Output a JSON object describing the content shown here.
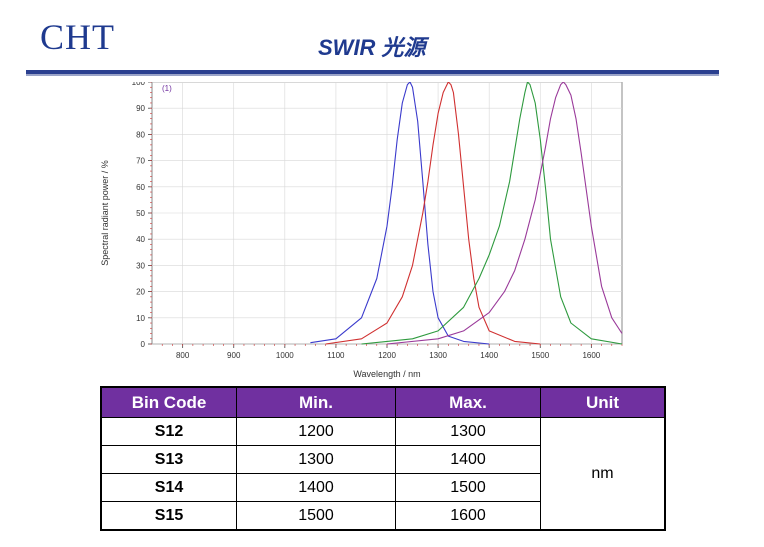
{
  "header": {
    "logo": "CHT",
    "title": "SWIR 光源"
  },
  "chart_data": {
    "type": "line",
    "ylabel": "Spectral radiant power / %",
    "xlabel": "Wavelength / nm",
    "corner_label": "(1)",
    "xlim": [
      740,
      1660
    ],
    "ylim": [
      0,
      100
    ],
    "x_ticks": [
      800,
      900,
      1000,
      1100,
      1200,
      1300,
      1400,
      1500,
      1600
    ],
    "y_ticks": [
      0,
      10,
      20,
      30,
      40,
      50,
      60,
      70,
      80,
      90,
      100
    ],
    "grid": true,
    "series": [
      {
        "color": "#3a3acc",
        "x": [
          1050,
          1100,
          1150,
          1180,
          1200,
          1210,
          1220,
          1230,
          1240,
          1245,
          1250,
          1260,
          1270,
          1280,
          1290,
          1300,
          1320,
          1350,
          1400
        ],
        "y": [
          0.5,
          2,
          10,
          25,
          45,
          60,
          78,
          92,
          99,
          100,
          98,
          85,
          62,
          38,
          20,
          10,
          3,
          1,
          0
        ]
      },
      {
        "color": "#d03030",
        "x": [
          1080,
          1150,
          1200,
          1230,
          1250,
          1270,
          1280,
          1290,
          1300,
          1310,
          1320,
          1325,
          1330,
          1340,
          1350,
          1360,
          1370,
          1380,
          1400,
          1450,
          1500
        ],
        "y": [
          0,
          2,
          8,
          18,
          30,
          50,
          62,
          76,
          88,
          96,
          100,
          99,
          96,
          80,
          60,
          40,
          25,
          14,
          5,
          1,
          0
        ]
      },
      {
        "color": "#2e9a3e",
        "x": [
          1150,
          1250,
          1300,
          1350,
          1380,
          1400,
          1420,
          1440,
          1450,
          1460,
          1470,
          1475,
          1480,
          1490,
          1500,
          1510,
          1520,
          1540,
          1560,
          1600,
          1660
        ],
        "y": [
          0,
          2,
          5,
          14,
          25,
          34,
          45,
          62,
          74,
          86,
          96,
          100,
          99,
          92,
          78,
          60,
          40,
          18,
          8,
          2,
          0
        ]
      },
      {
        "color": "#9a3a9a",
        "x": [
          1200,
          1300,
          1350,
          1400,
          1430,
          1450,
          1470,
          1490,
          1500,
          1510,
          1520,
          1530,
          1540,
          1545,
          1550,
          1560,
          1570,
          1580,
          1600,
          1620,
          1640,
          1660
        ],
        "y": [
          0,
          2,
          5,
          12,
          20,
          28,
          40,
          55,
          65,
          75,
          86,
          94,
          99,
          100,
          99,
          95,
          86,
          73,
          45,
          22,
          10,
          4
        ]
      }
    ]
  },
  "table": {
    "headers": [
      "Bin Code",
      "Min.",
      "Max.",
      "Unit"
    ],
    "rows": [
      {
        "code": "S12",
        "min": "1200",
        "max": "1300"
      },
      {
        "code": "S13",
        "min": "1300",
        "max": "1400"
      },
      {
        "code": "S14",
        "min": "1400",
        "max": "1500"
      },
      {
        "code": "S15",
        "min": "1500",
        "max": "1600"
      }
    ],
    "unit": "nm"
  },
  "colors": {
    "accent": "#1f3a8f",
    "header_bg": "#7030a0"
  }
}
